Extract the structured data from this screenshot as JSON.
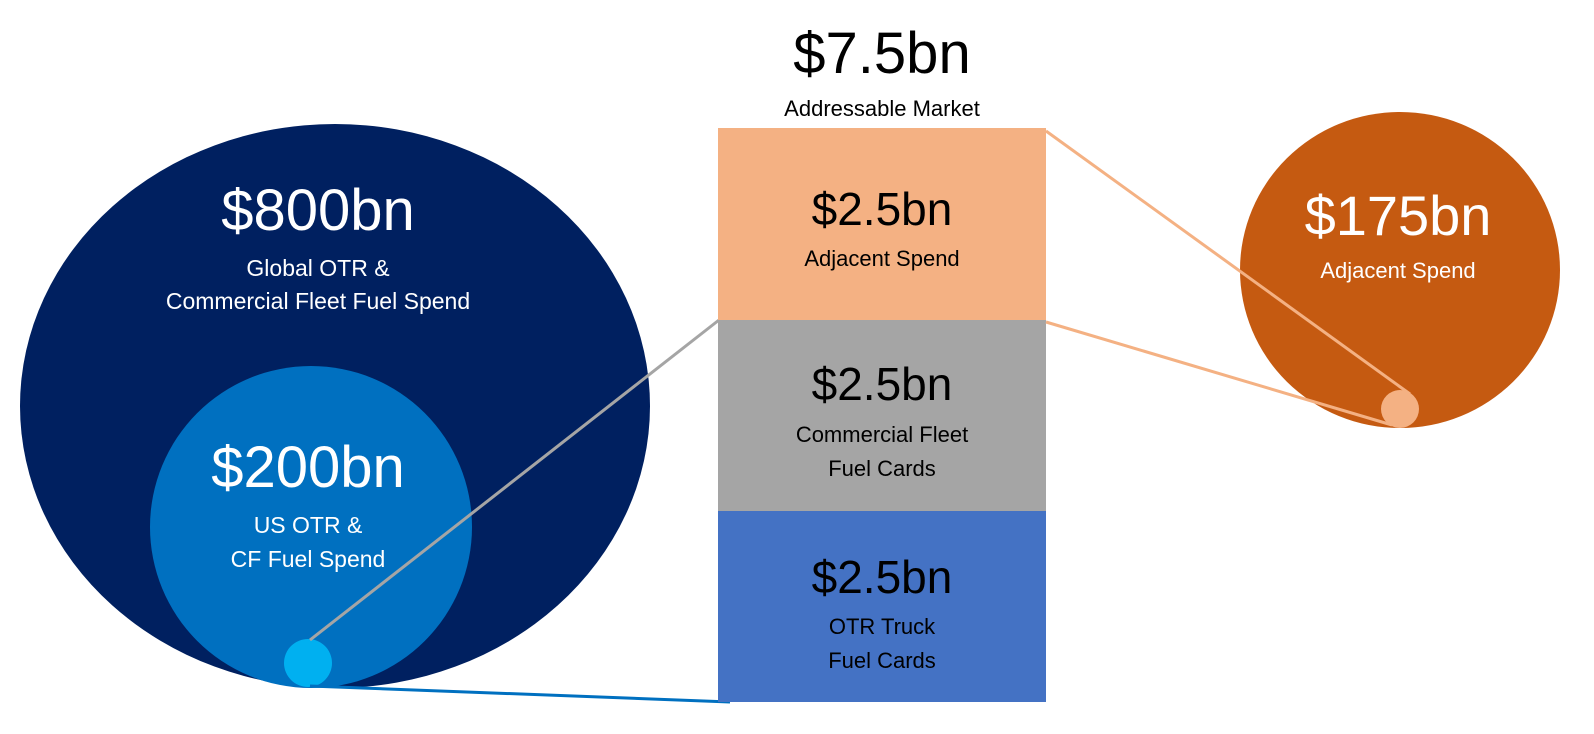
{
  "colors": {
    "global_circle": "#002060",
    "us_circle": "#0070C0",
    "us_small_dot": "#00B0F0",
    "adjacent_circle": "#C55A11",
    "adjacent_bar": "#F4B183",
    "commercial_bar": "#A5A5A5",
    "otr_bar": "#4472C4"
  },
  "total": {
    "value": "$7.5bn",
    "label": "Addressable Market"
  },
  "global": {
    "value": "$800bn",
    "label_line1": "Global OTR &",
    "label_line2": "Commercial Fleet Fuel Spend"
  },
  "us": {
    "value": "$200bn",
    "label_line1": "US OTR &",
    "label_line2": "CF Fuel Spend"
  },
  "adjacent": {
    "value": "$175bn",
    "label": "Adjacent Spend"
  },
  "bars": [
    {
      "value": "$2.5bn",
      "line1": "Adjacent Spend",
      "line2": ""
    },
    {
      "value": "$2.5bn",
      "line1": "Commercial Fleet",
      "line2": "Fuel Cards"
    },
    {
      "value": "$2.5bn",
      "line1": "OTR Truck",
      "line2": "Fuel Cards"
    }
  ]
}
